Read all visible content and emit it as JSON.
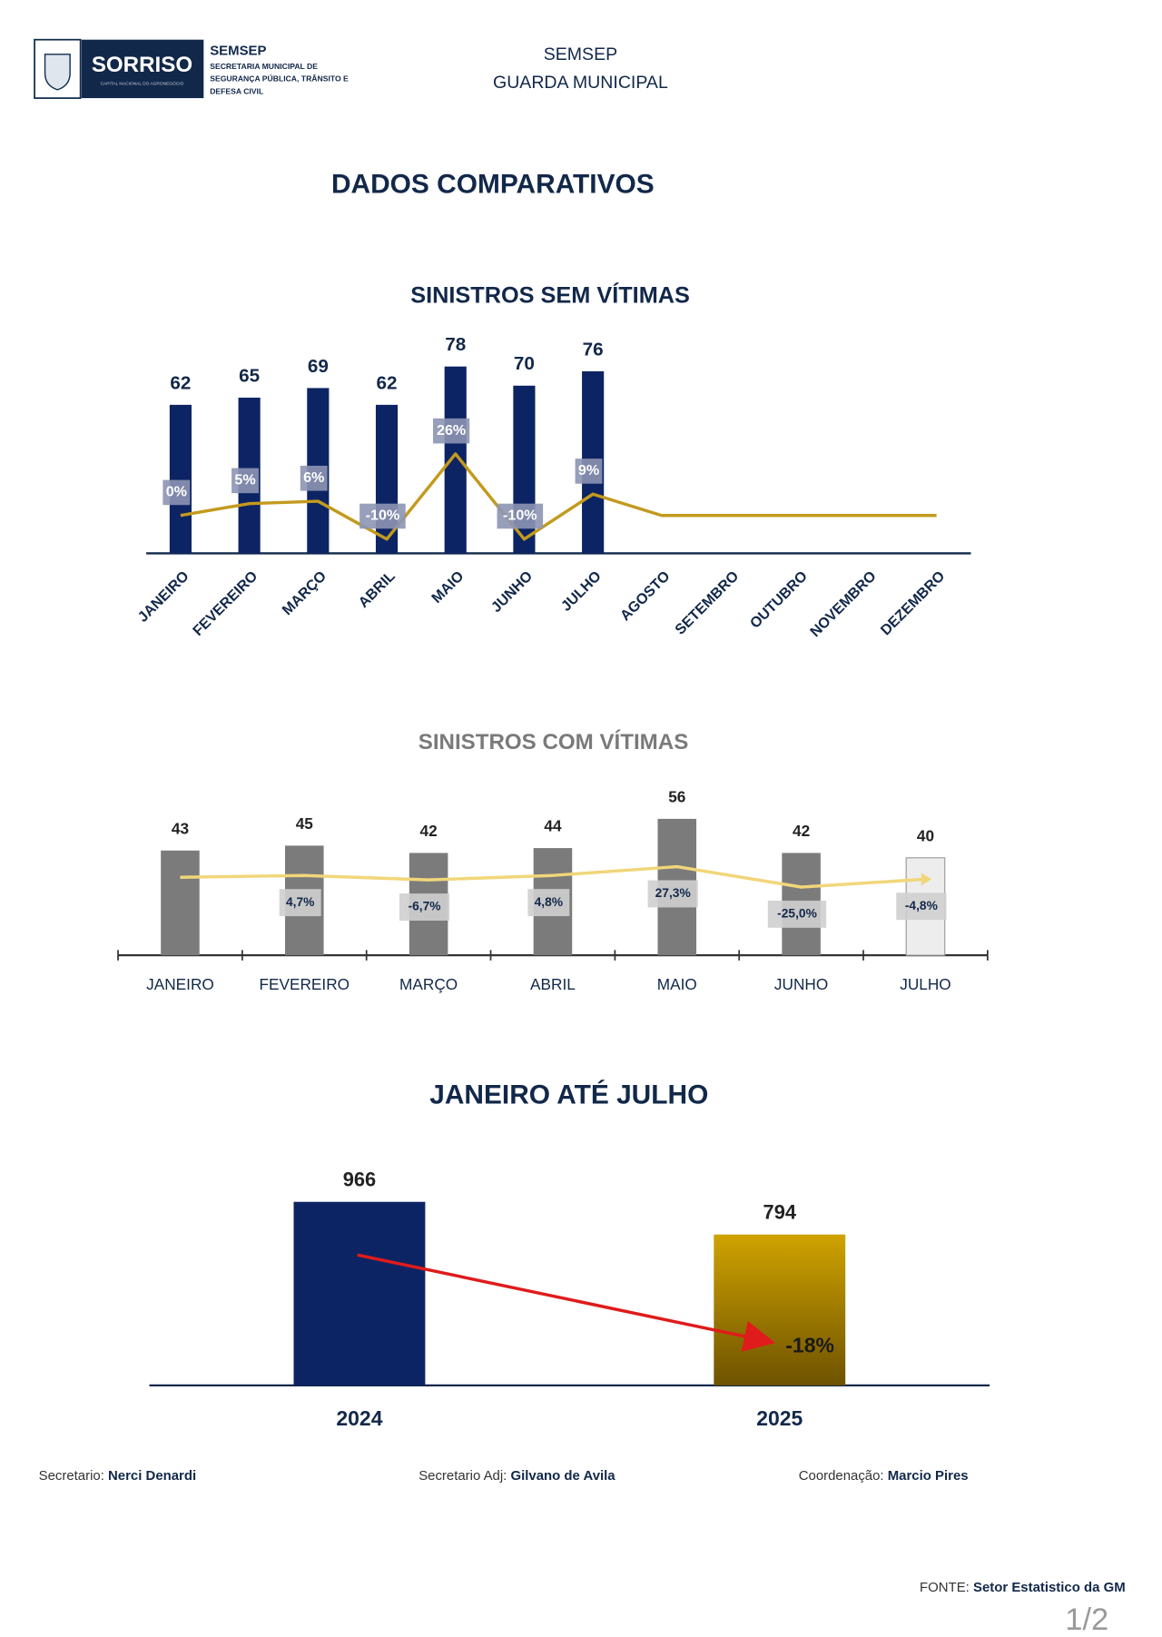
{
  "header": {
    "logo_text": "SORRISO",
    "logo_tagline": "CAPITAL NACIONAL DO AGRONEGÓCIO",
    "org": "SEMSEP",
    "org_lines": [
      "SECRETARIA MUNICIPAL DE",
      "SEGURANÇA PÚBLICA, TRÂNSITO E",
      "DEFESA CIVIL"
    ],
    "center_lines": [
      "SEMSEP",
      "GUARDA MUNICIPAL"
    ]
  },
  "title": "DADOS COMPARATIVOS",
  "chart_data": [
    {
      "type": "bar",
      "title": "SINISTROS SEM VÍTIMAS",
      "categories": [
        "JANEIRO",
        "FEVEREIRO",
        "MARÇO",
        "ABRIL",
        "MAIO",
        "JUNHO",
        "JULHO",
        "AGOSTO",
        "SETEMBRO",
        "OUTUBRO",
        "NOVEMBRO",
        "DEZEMBRO"
      ],
      "ylim": [
        0,
        85
      ],
      "y2lim": [
        -16,
        70
      ],
      "series": [
        {
          "type": "bar",
          "color": "#0d2464",
          "values": [
            62,
            65,
            69,
            62,
            78,
            70,
            76,
            null,
            null,
            null,
            null,
            null
          ]
        },
        {
          "type": "line",
          "axis": "y2",
          "color": "#c39a1e",
          "values": [
            0,
            5,
            6,
            -10,
            26,
            -10,
            9,
            0,
            0,
            0,
            0,
            0
          ],
          "value_labels": [
            "0%",
            "5%",
            "6%",
            "-10%",
            "26%",
            "-10%",
            "9%",
            null,
            null,
            null,
            null,
            null
          ]
        }
      ]
    },
    {
      "type": "bar",
      "title": "SINISTROS COM VÍTIMAS",
      "categories": [
        "JANEIRO",
        "FEVEREIRO",
        "MARÇO",
        "ABRIL",
        "MAIO",
        "JUNHO",
        "JULHO"
      ],
      "ylim": [
        0,
        60
      ],
      "y2lim": [
        -200,
        175
      ],
      "series": [
        {
          "type": "bar",
          "colors": [
            "#7b7b7b",
            "#7b7b7b",
            "#7b7b7b",
            "#7b7b7b",
            "#7b7b7b",
            "#7b7b7b",
            "#ededed"
          ],
          "values": [
            43,
            45,
            42,
            44,
            56,
            42,
            40
          ]
        },
        {
          "type": "line",
          "axis": "y2",
          "color": "#f1d67a",
          "values": [
            0,
            4.7,
            -6.7,
            4.8,
            27.3,
            -25.0,
            -4.8
          ],
          "value_labels": [
            null,
            "4,7%",
            "-6,7%",
            "4,8%",
            "27,3%",
            "-25,0%",
            "-4,8%"
          ]
        }
      ]
    },
    {
      "type": "bar",
      "title": "JANEIRO ATÉ JULHO",
      "categories": [
        "2024",
        "2025"
      ],
      "ylim": [
        0,
        1000
      ],
      "series": [
        {
          "type": "bar",
          "colors": [
            "#0d2464",
            "#b98f00"
          ],
          "values": [
            966,
            794
          ]
        }
      ],
      "annotation": "-18%"
    }
  ],
  "footer": {
    "people": [
      {
        "role": "Secretario:",
        "name": "Nerci Denardi"
      },
      {
        "role": "Secretario Adj:",
        "name": "Gilvano de Avila"
      },
      {
        "role": "Coordenação:",
        "name": "Marcio Pires"
      }
    ],
    "source_label": "FONTE:",
    "source": "Setor Estatistico da GM",
    "page": "1/2"
  }
}
